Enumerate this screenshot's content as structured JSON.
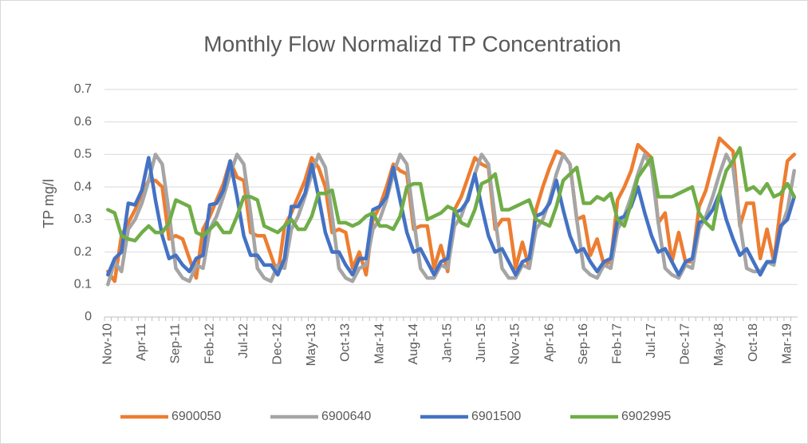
{
  "chart_data": {
    "type": "line",
    "title": "Monthly Flow Normalizd TP Concentration",
    "y_label": "TP mg/l",
    "categories": [
      "Nov-10",
      null,
      null,
      null,
      null,
      "Apr-11",
      null,
      null,
      null,
      null,
      "Sep-11",
      null,
      null,
      null,
      null,
      "Feb-12",
      null,
      null,
      null,
      null,
      "Jul-12",
      null,
      null,
      null,
      null,
      "Dec-12",
      null,
      null,
      null,
      null,
      "May-13",
      null,
      null,
      null,
      null,
      "Oct-13",
      null,
      null,
      null,
      null,
      "Mar-14",
      null,
      null,
      null,
      null,
      "Aug-14",
      null,
      null,
      null,
      null,
      "Jan-15",
      null,
      null,
      null,
      null,
      "Jun-15",
      null,
      null,
      null,
      null,
      "Nov-15",
      null,
      null,
      null,
      null,
      "Apr-16",
      null,
      null,
      null,
      null,
      "Sep-16",
      null,
      null,
      null,
      null,
      "Feb-17",
      null,
      null,
      null,
      null,
      "Jul-17",
      null,
      null,
      null,
      null,
      "Dec-17",
      null,
      null,
      null,
      null,
      "May-18",
      null,
      null,
      null,
      null,
      "Oct-18",
      null,
      null,
      null,
      null,
      "Mar-19",
      null
    ],
    "series": [
      {
        "name": "6900050",
        "color": "#ED7D31",
        "values": [
          0.14,
          0.11,
          0.25,
          0.29,
          0.33,
          0.38,
          0.42,
          0.42,
          0.4,
          0.24,
          0.25,
          0.24,
          0.18,
          0.12,
          0.27,
          0.31,
          0.36,
          0.41,
          0.48,
          0.43,
          0.42,
          0.26,
          0.25,
          0.25,
          0.19,
          0.13,
          0.28,
          0.32,
          0.37,
          0.42,
          0.49,
          0.46,
          0.4,
          0.26,
          0.27,
          0.26,
          0.15,
          0.2,
          0.13,
          0.3,
          0.34,
          0.4,
          0.47,
          0.45,
          0.44,
          0.27,
          0.28,
          0.28,
          0.15,
          0.22,
          0.14,
          0.33,
          0.37,
          0.43,
          0.49,
          0.47,
          0.46,
          0.27,
          0.3,
          0.3,
          0.15,
          0.23,
          0.15,
          0.33,
          0.4,
          0.46,
          0.51,
          0.5,
          0.47,
          0.3,
          0.31,
          0.19,
          0.24,
          0.16,
          0.17,
          0.36,
          0.4,
          0.45,
          0.53,
          0.51,
          0.49,
          0.29,
          0.32,
          0.17,
          0.26,
          0.17,
          0.17,
          0.34,
          0.39,
          0.47,
          0.55,
          0.53,
          0.51,
          0.28,
          0.35,
          0.35,
          0.18,
          0.27,
          0.17,
          0.34,
          0.48,
          0.5
        ]
      },
      {
        "name": "6900640",
        "color": "#A5A5A5",
        "values": [
          0.1,
          0.17,
          0.14,
          0.27,
          0.3,
          0.35,
          0.42,
          0.5,
          0.47,
          0.32,
          0.15,
          0.12,
          0.11,
          0.16,
          0.15,
          0.27,
          0.31,
          0.37,
          0.44,
          0.5,
          0.47,
          0.32,
          0.15,
          0.12,
          0.11,
          0.16,
          0.15,
          0.27,
          0.31,
          0.37,
          0.44,
          0.5,
          0.46,
          0.31,
          0.15,
          0.12,
          0.11,
          0.15,
          0.16,
          0.27,
          0.3,
          0.36,
          0.44,
          0.5,
          0.47,
          0.3,
          0.15,
          0.12,
          0.12,
          0.16,
          0.15,
          0.28,
          0.31,
          0.37,
          0.44,
          0.5,
          0.47,
          0.3,
          0.15,
          0.12,
          0.12,
          0.16,
          0.15,
          0.27,
          0.3,
          0.36,
          0.44,
          0.5,
          0.47,
          0.3,
          0.15,
          0.13,
          0.12,
          0.16,
          0.15,
          0.27,
          0.31,
          0.37,
          0.44,
          0.5,
          0.46,
          0.29,
          0.15,
          0.13,
          0.12,
          0.16,
          0.15,
          0.27,
          0.31,
          0.37,
          0.44,
          0.5,
          0.46,
          0.29,
          0.15,
          0.14,
          0.14,
          0.17,
          0.16,
          0.27,
          0.33,
          0.45
        ]
      },
      {
        "name": "6901500",
        "color": "#4472C4",
        "values": [
          0.13,
          0.18,
          0.2,
          0.35,
          0.345,
          0.39,
          0.49,
          0.36,
          0.25,
          0.18,
          0.19,
          0.16,
          0.14,
          0.18,
          0.19,
          0.345,
          0.35,
          0.39,
          0.48,
          0.37,
          0.25,
          0.19,
          0.19,
          0.16,
          0.16,
          0.13,
          0.18,
          0.34,
          0.34,
          0.38,
          0.47,
          0.37,
          0.26,
          0.2,
          0.2,
          0.16,
          0.13,
          0.18,
          0.18,
          0.33,
          0.34,
          0.37,
          0.46,
          0.36,
          0.26,
          0.2,
          0.21,
          0.17,
          0.13,
          0.17,
          0.18,
          0.32,
          0.33,
          0.36,
          0.44,
          0.34,
          0.25,
          0.2,
          0.21,
          0.17,
          0.13,
          0.17,
          0.18,
          0.31,
          0.32,
          0.35,
          0.42,
          0.33,
          0.25,
          0.2,
          0.21,
          0.17,
          0.14,
          0.17,
          0.18,
          0.3,
          0.31,
          0.34,
          0.4,
          0.32,
          0.25,
          0.2,
          0.21,
          0.17,
          0.13,
          0.17,
          0.18,
          0.29,
          0.3,
          0.33,
          0.38,
          0.3,
          0.24,
          0.19,
          0.21,
          0.17,
          0.13,
          0.17,
          0.17,
          0.28,
          0.3,
          0.37
        ]
      },
      {
        "name": "6902995",
        "color": "#70AD47",
        "values": [
          0.33,
          0.32,
          0.25,
          0.24,
          0.235,
          0.26,
          0.28,
          0.26,
          0.26,
          0.29,
          0.36,
          0.35,
          0.34,
          0.26,
          0.25,
          0.27,
          0.29,
          0.26,
          0.26,
          0.31,
          0.37,
          0.37,
          0.36,
          0.28,
          0.27,
          0.26,
          0.28,
          0.3,
          0.27,
          0.27,
          0.31,
          0.38,
          0.38,
          0.39,
          0.29,
          0.29,
          0.28,
          0.29,
          0.31,
          0.32,
          0.28,
          0.28,
          0.27,
          0.31,
          0.4,
          0.41,
          0.41,
          0.3,
          0.31,
          0.32,
          0.34,
          0.33,
          0.29,
          0.28,
          0.33,
          0.41,
          0.42,
          0.44,
          0.33,
          0.33,
          0.34,
          0.35,
          0.36,
          0.3,
          0.29,
          0.28,
          0.34,
          0.42,
          0.44,
          0.46,
          0.35,
          0.35,
          0.37,
          0.36,
          0.38,
          0.3,
          0.28,
          0.35,
          0.43,
          0.46,
          0.49,
          0.37,
          0.37,
          0.37,
          0.38,
          0.39,
          0.4,
          0.32,
          0.29,
          0.27,
          0.38,
          0.45,
          0.48,
          0.52,
          0.39,
          0.4,
          0.38,
          0.41,
          0.37,
          0.38,
          0.41,
          0.37
        ]
      }
    ],
    "ylim": [
      0,
      0.7
    ],
    "yticks": [
      0,
      0.1,
      0.2,
      0.3,
      0.4,
      0.5,
      0.6,
      0.7
    ],
    "grid": true,
    "legend": "bottom"
  }
}
